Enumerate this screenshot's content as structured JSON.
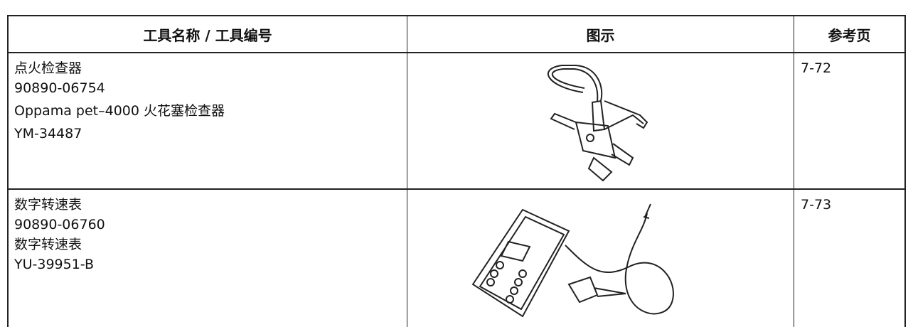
{
  "table": {
    "header": [
      "工具名称 / 工具编号",
      "图示",
      "参考页"
    ],
    "rows": [
      {
        "tool": [
          "点火检查器",
          "90890-06754",
          "Oppama pet–4000 火花塞检查器",
          "YM-34487"
        ],
        "ref": "7-72"
      },
      {
        "tool": [
          "数字转速表",
          "90890-06760",
          "数字转速表",
          "YU-39951-B"
        ],
        "ref": "7-73"
      }
    ]
  }
}
